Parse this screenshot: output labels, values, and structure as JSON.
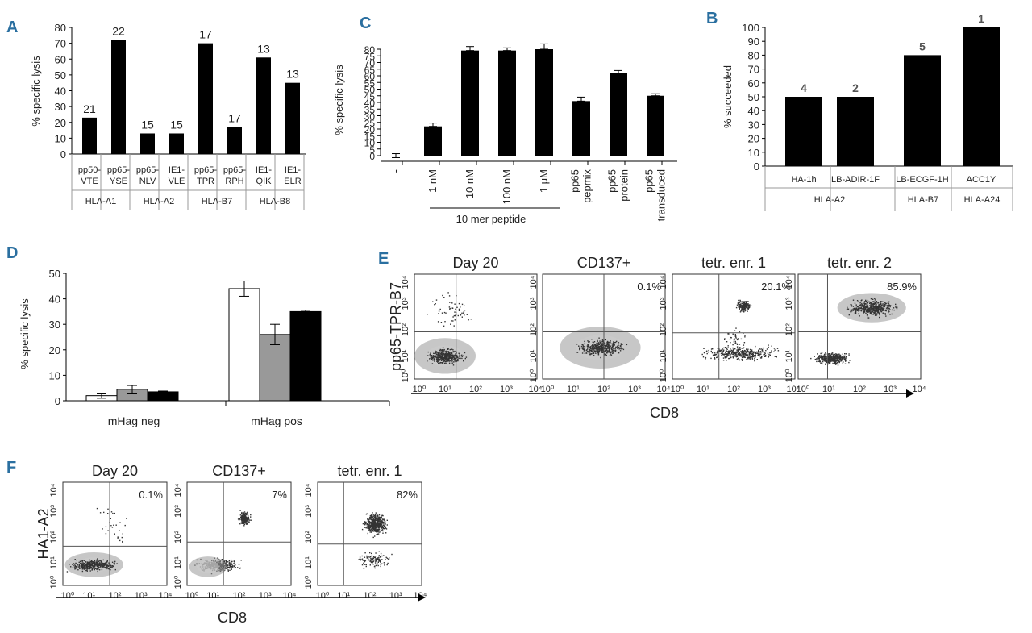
{
  "panels": {
    "A": {
      "letter": "A"
    },
    "B": {
      "letter": "B"
    },
    "C": {
      "letter": "C"
    },
    "D": {
      "letter": "D"
    },
    "E": {
      "letter": "E"
    },
    "F": {
      "letter": "F"
    }
  },
  "chart_data": [
    {
      "panel": "A",
      "type": "bar",
      "ylabel": "% specific lysis",
      "ylim": [
        0,
        80
      ],
      "yticks": [
        "0",
        "10",
        "20",
        "30",
        "40",
        "50",
        "60",
        "70",
        "80"
      ],
      "categories": [
        [
          "pp50-",
          "VTE"
        ],
        [
          "pp65-",
          "YSE"
        ],
        [
          "pp65-",
          "NLV"
        ],
        [
          "IE1-",
          "VLE"
        ],
        [
          "pp65-",
          "TPR"
        ],
        [
          "pp65-",
          "RPH"
        ],
        [
          "IE1-",
          "QIK"
        ],
        [
          "IE1-",
          "ELR"
        ]
      ],
      "values": [
        23,
        72,
        13,
        13,
        70,
        17,
        61,
        45
      ],
      "labels": [
        "21",
        "22",
        "15",
        "15",
        "17",
        "17",
        "13",
        "13"
      ],
      "groups": [
        {
          "name": "HLA-A1",
          "span": [
            0,
            1
          ]
        },
        {
          "name": "HLA-A2",
          "span": [
            2,
            3
          ]
        },
        {
          "name": "HLA-B7",
          "span": [
            4,
            5
          ]
        },
        {
          "name": "HLA-B8",
          "span": [
            6,
            7
          ]
        }
      ]
    },
    {
      "panel": "C",
      "type": "bar",
      "ylabel": "% specific lysis",
      "ylim": [
        0,
        80
      ],
      "yticks": [
        "0",
        "5",
        "10",
        "15",
        "20",
        "25",
        "30",
        "35",
        "40",
        "45",
        "50",
        "55",
        "60",
        "65",
        "70",
        "75",
        "80"
      ],
      "categories": [
        [
          "-"
        ],
        [
          "1 nM"
        ],
        [
          "10 nM"
        ],
        [
          "100 nM"
        ],
        [
          "1 μM"
        ],
        [
          "pp65",
          "pepmix"
        ],
        [
          "pp65",
          "protein"
        ],
        [
          "pp65",
          "transduced"
        ]
      ],
      "values": [
        0,
        22,
        79,
        79,
        80,
        41,
        62,
        45
      ],
      "errors": [
        1.5,
        2.5,
        3,
        2,
        4,
        3,
        2,
        1.5
      ],
      "group_label": "10 mer peptide",
      "group_span": [
        1,
        4
      ]
    },
    {
      "panel": "B",
      "type": "bar",
      "ylabel": "% succeeded",
      "ylim": [
        0,
        100
      ],
      "yticks": [
        "0",
        "10",
        "20",
        "30",
        "40",
        "50",
        "60",
        "70",
        "80",
        "90",
        "100"
      ],
      "categories": [
        "HA-1h",
        "LB-ADIR-1F",
        "LB-ECGF-1H",
        "ACC1Y"
      ],
      "values": [
        50,
        50,
        80,
        100
      ],
      "labels": [
        "4",
        "2",
        "5",
        "1"
      ],
      "groups": [
        {
          "name": "HLA-A2",
          "span": [
            0,
            1
          ]
        },
        {
          "name": "HLA-B7",
          "span": [
            2,
            2
          ]
        },
        {
          "name": "HLA-A24",
          "span": [
            3,
            3
          ]
        }
      ]
    },
    {
      "panel": "D",
      "type": "bar",
      "ylabel": "% specific lysis",
      "ylim": [
        0,
        50
      ],
      "yticks": [
        "0",
        "10",
        "20",
        "30",
        "40",
        "50"
      ],
      "categories": [
        "mHag neg",
        "mHag pos"
      ],
      "series": [
        {
          "name": "white",
          "color": "#ffffff",
          "values": [
            2,
            44
          ],
          "errors": [
            1,
            3
          ]
        },
        {
          "name": "grey",
          "color": "#999999",
          "values": [
            4.5,
            26
          ],
          "errors": [
            1.5,
            4
          ]
        },
        {
          "name": "black",
          "color": "#000000",
          "values": [
            3.5,
            35
          ],
          "errors": [
            0.3,
            0.5
          ]
        }
      ]
    },
    {
      "panel": "E",
      "type": "scatter",
      "ylabel": "pp65-TPR-B7",
      "xlabel": "CD8",
      "xticks": [
        "10⁰",
        "10¹",
        "10²",
        "10³",
        "10⁴"
      ],
      "yticks": [
        "10⁰",
        "10¹",
        "10²",
        "10³",
        "10⁴"
      ],
      "plots": [
        {
          "title": "Day 20",
          "percent": ""
        },
        {
          "title": "CD137+",
          "percent": "0.1%"
        },
        {
          "title": "tetr. enr. 1",
          "percent": "20.1%"
        },
        {
          "title": "tetr. enr. 2",
          "percent": "85.9%"
        }
      ]
    },
    {
      "panel": "F",
      "type": "scatter",
      "ylabel": "HA1-A2",
      "xlabel": "CD8",
      "xticks": [
        "10⁰",
        "10¹",
        "10²",
        "10³",
        "10⁴"
      ],
      "yticks": [
        "10⁰",
        "10¹",
        "10²",
        "10³",
        "10⁴"
      ],
      "plots": [
        {
          "title": "Day 20",
          "percent": "0.1%"
        },
        {
          "title": "CD137+",
          "percent": "7%"
        },
        {
          "title": "tetr. enr. 1",
          "percent": "82%"
        }
      ]
    }
  ]
}
